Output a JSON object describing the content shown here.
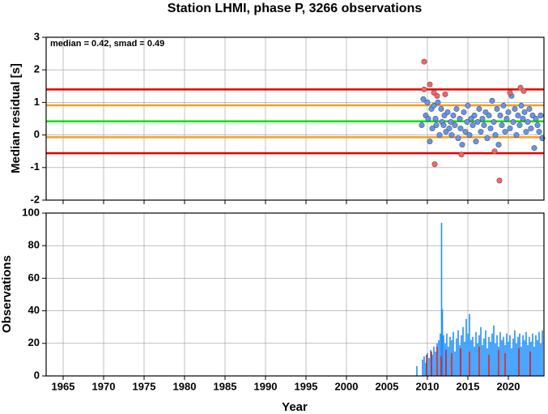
{
  "chart_data": [
    {
      "type": "scatter",
      "title": "Station LHMI, phase P, 3266 observations",
      "ylabel": "Median residual [s]",
      "annotation": "median = 0.42, smad = 0.49",
      "xlim": [
        1962.9,
        2024.4
      ],
      "ylim": [
        -2,
        3
      ],
      "yticks": [
        -2,
        -1,
        0,
        1,
        2,
        3
      ],
      "grid": true,
      "hlines": [
        {
          "value": 1.4,
          "color": "#e00000"
        },
        {
          "value": 0.91,
          "color": "#f0a020"
        },
        {
          "value": 0.42,
          "color": "#00e000"
        },
        {
          "value": -0.07,
          "color": "#f0a020"
        },
        {
          "value": -0.56,
          "color": "#e00000"
        }
      ],
      "series": [
        {
          "color": "#6495ed",
          "x": [
            2009.3,
            2009.5,
            2009.8,
            2010.0,
            2010.1,
            2010.3,
            2010.5,
            2010.6,
            2010.8,
            2011.0,
            2011.1,
            2011.3,
            2011.5,
            2011.7,
            2011.8,
            2012.0,
            2012.1,
            2012.3,
            2012.5,
            2012.7,
            2012.9,
            2013.0,
            2013.2,
            2013.4,
            2013.6,
            2013.8,
            2014.0,
            2014.1,
            2014.3,
            2014.5,
            2014.7,
            2014.9,
            2015.0,
            2015.2,
            2015.4,
            2015.6,
            2015.8,
            2016.0,
            2016.2,
            2016.4,
            2016.6,
            2016.8,
            2017.0,
            2017.2,
            2017.4,
            2017.6,
            2017.8,
            2018.0,
            2018.2,
            2018.4,
            2018.6,
            2018.8,
            2019.0,
            2019.2,
            2019.4,
            2019.6,
            2019.8,
            2020.0,
            2020.2,
            2020.4,
            2020.6,
            2020.8,
            2021.0,
            2021.2,
            2021.4,
            2021.6,
            2021.8,
            2022.0,
            2022.2,
            2022.4,
            2022.6,
            2022.8,
            2023.0,
            2023.2,
            2023.4,
            2023.6,
            2023.8,
            2024.0,
            2024.2
          ],
          "values": [
            0.3,
            1.1,
            0.6,
            1.0,
            0.5,
            -0.2,
            0.8,
            0.2,
            0.9,
            0.5,
            0.3,
            1.0,
            0.0,
            0.8,
            0.4,
            0.3,
            0.6,
            0.1,
            0.7,
            0.2,
            0.4,
            0.0,
            0.6,
            0.3,
            0.8,
            -0.1,
            0.5,
            0.2,
            -0.3,
            0.7,
            0.1,
            0.4,
            0.9,
            0.0,
            0.5,
            0.3,
            0.6,
            -0.2,
            0.4,
            0.8,
            0.1,
            0.5,
            0.3,
            0.7,
            -0.1,
            0.6,
            0.2,
            1.05,
            0.4,
            0.0,
            0.8,
            -0.3,
            0.6,
            0.3,
            0.9,
            0.1,
            0.5,
            0.7,
            0.2,
            1.2,
            0.4,
            0.8,
            0.0,
            0.6,
            0.3,
            0.9,
            0.5,
            0.7,
            0.1,
            0.4,
            0.8,
            0.2,
            0.6,
            -0.4,
            0.5,
            0.3,
            0.1,
            0.6,
            -0.1
          ]
        },
        {
          "color": "#ff6060",
          "x": [
            2009.6,
            2009.6,
            2010.3,
            2010.8,
            2011.2,
            2012.2,
            2010.9,
            2014.2,
            2018.9,
            2021.5,
            2021.9,
            2018.3,
            2020.2
          ],
          "values": [
            2.25,
            1.4,
            1.55,
            1.3,
            1.2,
            1.25,
            -0.9,
            -0.6,
            -1.4,
            1.45,
            1.35,
            -0.5,
            1.3
          ]
        }
      ]
    },
    {
      "type": "bar",
      "ylabel": "Observations",
      "xlabel": "Year",
      "xlim": [
        1962.9,
        2024.4
      ],
      "ylim": [
        0,
        100
      ],
      "yticks": [
        0,
        20,
        40,
        60,
        80,
        100
      ],
      "xticks": [
        1965,
        1970,
        1975,
        1980,
        1985,
        1990,
        1995,
        2000,
        2005,
        2010,
        2015,
        2020
      ],
      "grid": true,
      "series": [
        {
          "color": "#1e90ff",
          "x": [
            2008.7,
            2009.4,
            2009.6,
            2009.8,
            2010.0,
            2010.2,
            2010.4,
            2010.6,
            2010.8,
            2011.0,
            2011.2,
            2011.4,
            2011.6,
            2011.75,
            2011.85,
            2012.0,
            2012.2,
            2012.4,
            2012.6,
            2012.8,
            2013.0,
            2013.2,
            2013.4,
            2013.6,
            2013.8,
            2014.0,
            2014.2,
            2014.4,
            2014.6,
            2014.8,
            2015.0,
            2015.2,
            2015.4,
            2015.6,
            2015.8,
            2016.0,
            2016.2,
            2016.4,
            2016.6,
            2016.8,
            2017.0,
            2017.2,
            2017.4,
            2017.6,
            2017.8,
            2018.0,
            2018.2,
            2018.4,
            2018.6,
            2018.8,
            2019.0,
            2019.2,
            2019.4,
            2019.6,
            2019.8,
            2020.0,
            2020.2,
            2020.4,
            2020.6,
            2020.8,
            2021.0,
            2021.2,
            2021.4,
            2021.6,
            2021.8,
            2022.0,
            2022.2,
            2022.4,
            2022.6,
            2022.8,
            2023.0,
            2023.2,
            2023.4,
            2023.6,
            2023.8,
            2024.0,
            2024.2
          ],
          "values": [
            6,
            10,
            12,
            8,
            14,
            11,
            16,
            13,
            18,
            15,
            20,
            22,
            26,
            94,
            41,
            25,
            20,
            26,
            18,
            24,
            22,
            27,
            15,
            23,
            28,
            19,
            25,
            30,
            21,
            35,
            26,
            38,
            22,
            24,
            18,
            27,
            20,
            25,
            30,
            19,
            23,
            28,
            17,
            24,
            21,
            26,
            31,
            20,
            25,
            18,
            27,
            22,
            24,
            19,
            26,
            21,
            25,
            17,
            23,
            28,
            20,
            24,
            26,
            18,
            25,
            22,
            27,
            19,
            24,
            21,
            26,
            18,
            25,
            22,
            27,
            20,
            28
          ]
        },
        {
          "color": "#e02020",
          "x": [
            2009.9,
            2010.5,
            2011.2,
            2011.7,
            2012.3,
            2013.0,
            2014.1,
            2015.2,
            2016.4,
            2017.6,
            2018.8,
            2019.6,
            2021.3,
            2022.7
          ],
          "values": [
            13,
            15,
            18,
            12,
            16,
            14,
            17,
            15,
            18,
            13,
            16,
            14,
            17,
            15
          ]
        }
      ]
    }
  ]
}
